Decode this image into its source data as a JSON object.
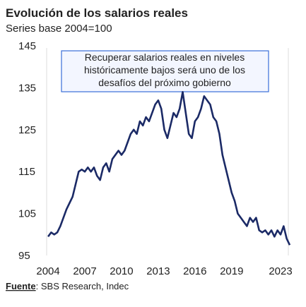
{
  "chart_data": {
    "type": "line",
    "title": "Evolución de los salarios reales",
    "subtitle": "Series base 2004=100",
    "annotation": [
      "Recuperar salarios reales en niveles",
      "históricamente bajos será uno de los",
      "desafíos del próximo gobierno"
    ],
    "source_label": "Fuente",
    "source_text": ": SBS Research, Indec",
    "x": [
      2004,
      2004.25,
      2004.5,
      2004.75,
      2005,
      2005.25,
      2005.5,
      2005.75,
      2006,
      2006.25,
      2006.5,
      2006.75,
      2007,
      2007.25,
      2007.5,
      2007.75,
      2008,
      2008.25,
      2008.5,
      2008.75,
      2009,
      2009.25,
      2009.5,
      2009.75,
      2010,
      2010.25,
      2010.5,
      2010.75,
      2011,
      2011.25,
      2011.5,
      2011.75,
      2012,
      2012.25,
      2012.5,
      2012.75,
      2013,
      2013.25,
      2013.5,
      2013.75,
      2014,
      2014.25,
      2014.5,
      2014.75,
      2015,
      2015.25,
      2015.5,
      2015.75,
      2016,
      2016.25,
      2016.5,
      2016.75,
      2017,
      2017.25,
      2017.5,
      2017.75,
      2018,
      2018.25,
      2018.5,
      2018.75,
      2019,
      2019.25,
      2019.5,
      2019.75,
      2020,
      2020.25,
      2020.5,
      2020.75,
      2021,
      2021.25,
      2021.5,
      2021.75,
      2022,
      2022.25,
      2022.5,
      2022.75,
      2023,
      2023.25,
      2023.5,
      2023.75
    ],
    "series": [
      {
        "name": "Salarios reales",
        "color": "#1b2a66",
        "values": [
          99.5,
          100.5,
          100,
          100.5,
          102,
          104,
          106,
          107.5,
          109,
          112,
          115,
          115.5,
          115,
          116,
          115,
          116,
          114,
          113,
          116,
          117,
          115,
          118,
          119,
          120,
          119,
          120,
          122,
          124,
          125,
          124,
          127,
          126,
          128,
          127,
          129,
          131,
          132,
          130,
          125,
          123,
          126,
          129,
          128,
          130,
          134,
          129,
          124,
          123,
          127,
          128,
          130,
          133,
          132,
          131,
          128,
          127,
          124,
          119,
          116,
          113,
          110,
          108,
          105,
          104,
          103,
          102,
          104,
          103,
          104,
          101,
          100.5,
          101,
          100,
          101,
          99.5,
          101,
          100,
          102,
          99,
          97.5
        ]
      }
    ],
    "xlim": [
      2003.65,
      2023.75
    ],
    "xticks": [
      2004,
      2007,
      2010,
      2013,
      2016,
      2019,
      2023
    ],
    "ylim": [
      95,
      145
    ],
    "yticks": [
      95,
      105,
      115,
      125,
      135,
      145
    ]
  }
}
